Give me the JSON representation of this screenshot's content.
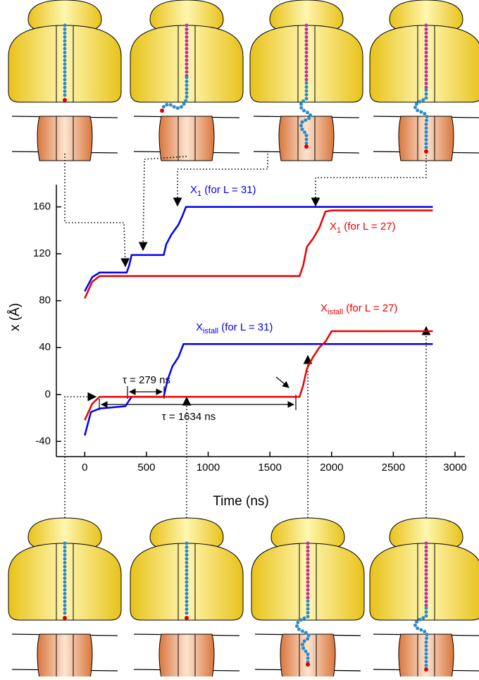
{
  "chart_data": {
    "type": "line",
    "x_label": "Time (ns)",
    "y_label": "x (Å)",
    "xlim": [
      -230,
      3080
    ],
    "ylim": [
      -53,
      179
    ],
    "xticks": [
      0,
      500,
      1000,
      1500,
      2000,
      2500,
      3000
    ],
    "yticks": [
      -40,
      0,
      40,
      80,
      120,
      160
    ],
    "series": [
      {
        "color": "#0000ee",
        "label": {
          "main": "X",
          "sub": "1",
          "rest": " (for L = 31)"
        },
        "x": [
          0,
          60,
          120,
          340,
          360,
          380,
          640,
          660,
          700,
          760,
          790,
          820,
          2820
        ],
        "values": [
          88,
          100,
          104,
          104,
          110,
          119,
          119,
          128,
          136,
          145,
          152,
          160,
          160
        ]
      },
      {
        "color": "#ee0000",
        "label": {
          "main": "X",
          "sub": "1",
          "rest": " (for L = 27)"
        },
        "x": [
          0,
          60,
          120,
          1740,
          1770,
          1800,
          1850,
          1900,
          1950,
          2000,
          2820
        ],
        "values": [
          82,
          96,
          101,
          101,
          110,
          126,
          133,
          142,
          156,
          157,
          157
        ]
      },
      {
        "color": "#0000ee",
        "label": {
          "main": "X",
          "sub": "istall",
          "rest": " (for L = 31)"
        },
        "x": [
          0,
          50,
          120,
          330,
          360,
          380,
          640,
          670,
          710,
          760,
          800,
          2820
        ],
        "values": [
          -35,
          -15,
          -12,
          -10,
          -5,
          -2,
          -2,
          12,
          24,
          32,
          43,
          43
        ]
      },
      {
        "color": "#ee0000",
        "label": {
          "main": "X",
          "sub": "istall",
          "rest": " (for L = 27)"
        },
        "x": [
          0,
          60,
          120,
          1740,
          1770,
          1800,
          1850,
          1900,
          1950,
          2000,
          2820
        ],
        "values": [
          -22,
          -8,
          -2,
          -2,
          8,
          22,
          32,
          40,
          45,
          54,
          54
        ]
      }
    ],
    "annotations": [
      "τ = 279 ns",
      "τ = 1634 ns"
    ]
  }
}
